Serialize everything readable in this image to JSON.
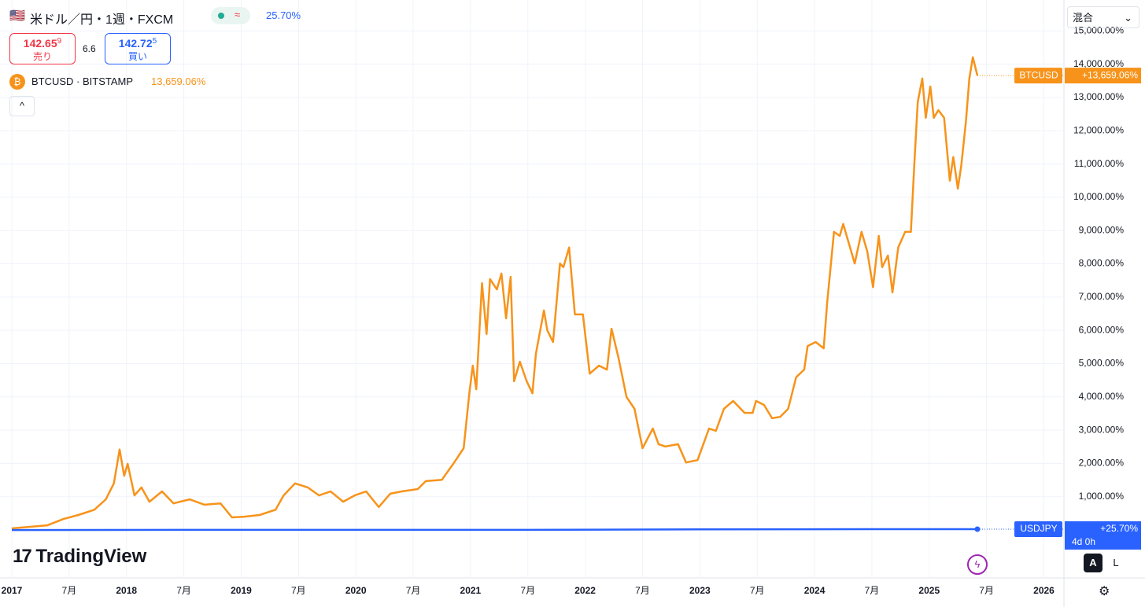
{
  "header": {
    "symbol": "米ドル／円・1週・FXCM",
    "change": "25.70%",
    "sell": {
      "price": "142.65",
      "pip": "9",
      "label": "売り"
    },
    "spread": "6.6",
    "buy": {
      "price": "142.72",
      "pip": "5",
      "label": "買い"
    },
    "compare": "BTCUSD · BITSTAMP",
    "compare_value": "13,659.06%",
    "scale_mode": "混合",
    "logo": "TradingView",
    "auto": "A",
    "log": "L",
    "countdown": "4d 0h"
  },
  "chart_data": {
    "type": "line",
    "grid": true,
    "xlim": [
      2016.897,
      2026.175
    ],
    "ylim": [
      -1440,
      15930
    ],
    "xticks": [
      2017,
      {
        "value": 2017.5,
        "label": "7月"
      },
      2018,
      {
        "value": 2018.5,
        "label": "7月"
      },
      2019,
      {
        "value": 2019.5,
        "label": "7月"
      },
      2020,
      {
        "value": 2020.5,
        "label": "7月"
      },
      2021,
      {
        "value": 2021.5,
        "label": "7月"
      },
      2022,
      {
        "value": 2022.5,
        "label": "7月"
      },
      2023,
      {
        "value": 2023.5,
        "label": "7月"
      },
      2024,
      {
        "value": 2024.5,
        "label": "7月"
      },
      2025,
      {
        "value": 2025.5,
        "label": "7月"
      },
      2026
    ],
    "yticks": [
      {
        "value": 1000,
        "label": "1,000.00%"
      },
      {
        "value": 2000,
        "label": "2,000.00%"
      },
      {
        "value": 3000,
        "label": "3,000.00%"
      },
      {
        "value": 4000,
        "label": "4,000.00%"
      },
      {
        "value": 5000,
        "label": "5,000.00%"
      },
      {
        "value": 6000,
        "label": "6,000.00%"
      },
      {
        "value": 7000,
        "label": "7,000.00%"
      },
      {
        "value": 8000,
        "label": "8,000.00%"
      },
      {
        "value": 9000,
        "label": "9,000.00%"
      },
      {
        "value": 10000,
        "label": "10,000.00%"
      },
      {
        "value": 11000,
        "label": "11,000.00%"
      },
      {
        "value": 12000,
        "label": "12,000.00%"
      },
      {
        "value": 13000,
        "label": "13,000.00%"
      },
      {
        "value": 14000,
        "label": "14,000.00%"
      },
      {
        "value": 15000,
        "label": "15,000.00%"
      }
    ],
    "series": [
      {
        "name": "BTCUSD",
        "color": "#f7931a",
        "last_label": "+13,659.06%",
        "x": [
          2017.0,
          2017.31,
          2017.45,
          2017.58,
          2017.72,
          2017.82,
          2017.89,
          2017.94,
          2017.98,
          2018.01,
          2018.07,
          2018.13,
          2018.2,
          2018.31,
          2018.41,
          2018.55,
          2018.68,
          2018.82,
          2018.92,
          2019.03,
          2019.16,
          2019.3,
          2019.37,
          2019.47,
          2019.58,
          2019.68,
          2019.78,
          2019.89,
          2019.99,
          2020.09,
          2020.2,
          2020.3,
          2020.4,
          2020.54,
          2020.61,
          2020.75,
          2020.85,
          2020.94,
          2020.99,
          2021.02,
          2021.05,
          2021.1,
          2021.14,
          2021.17,
          2021.23,
          2021.27,
          2021.31,
          2021.35,
          2021.38,
          2021.43,
          2021.49,
          2021.54,
          2021.57,
          2021.64,
          2021.67,
          2021.72,
          2021.78,
          2021.81,
          2021.86,
          2021.91,
          2021.98,
          2022.04,
          2022.12,
          2022.19,
          2022.23,
          2022.29,
          2022.36,
          2022.43,
          2022.5,
          2022.59,
          2022.64,
          2022.7,
          2022.81,
          2022.88,
          2022.98,
          2023.08,
          2023.14,
          2023.21,
          2023.29,
          2023.39,
          2023.46,
          2023.49,
          2023.56,
          2023.63,
          2023.7,
          2023.77,
          2023.84,
          2023.91,
          2023.94,
          2024.01,
          2024.08,
          2024.11,
          2024.17,
          2024.22,
          2024.25,
          2024.32,
          2024.35,
          2024.41,
          2024.46,
          2024.51,
          2024.56,
          2024.59,
          2024.64,
          2024.68,
          2024.73,
          2024.79,
          2024.84,
          2024.87,
          2024.9,
          2024.94,
          2024.97,
          2025.01,
          2025.04,
          2025.08,
          2025.13,
          2025.18,
          2025.21,
          2025.25,
          2025.28,
          2025.32,
          2025.35,
          2025.38,
          2025.42
        ],
        "values": [
          50,
          140,
          330,
          450,
          610,
          920,
          1400,
          2420,
          1630,
          1990,
          1040,
          1280,
          850,
          1160,
          800,
          920,
          760,
          800,
          380,
          400,
          450,
          610,
          1040,
          1400,
          1280,
          1040,
          1160,
          850,
          1040,
          1160,
          690,
          1090,
          1160,
          1230,
          1470,
          1510,
          1990,
          2460,
          4110,
          4940,
          4230,
          7420,
          5890,
          7540,
          7230,
          7710,
          6360,
          7610,
          4470,
          5060,
          4470,
          4110,
          5300,
          6600,
          6000,
          5650,
          8010,
          7900,
          8490,
          6480,
          6480,
          4700,
          4940,
          4820,
          6050,
          5180,
          4000,
          3640,
          2460,
          3050,
          2580,
          2510,
          2580,
          2030,
          2100,
          3050,
          2980,
          3640,
          3880,
          3520,
          3520,
          3880,
          3760,
          3360,
          3400,
          3640,
          4590,
          4820,
          5530,
          5650,
          5460,
          6830,
          8960,
          8840,
          9200,
          8370,
          8010,
          8960,
          8370,
          7300,
          8840,
          7900,
          8250,
          7140,
          8490,
          8960,
          8960,
          10970,
          12860,
          13570,
          12390,
          13330,
          12390,
          12620,
          12390,
          10500,
          11210,
          10260,
          10970,
          12270,
          13570,
          14210,
          13659.06
        ]
      },
      {
        "name": "USDJPY",
        "color": "#2962ff",
        "last_label": "+25.70%",
        "x": [
          2017.0,
          2018.5,
          2020.0,
          2021.5,
          2023.0,
          2024.5,
          2025.42
        ],
        "values": [
          0,
          5,
          3,
          5,
          20,
          25,
          25.7
        ]
      }
    ]
  }
}
